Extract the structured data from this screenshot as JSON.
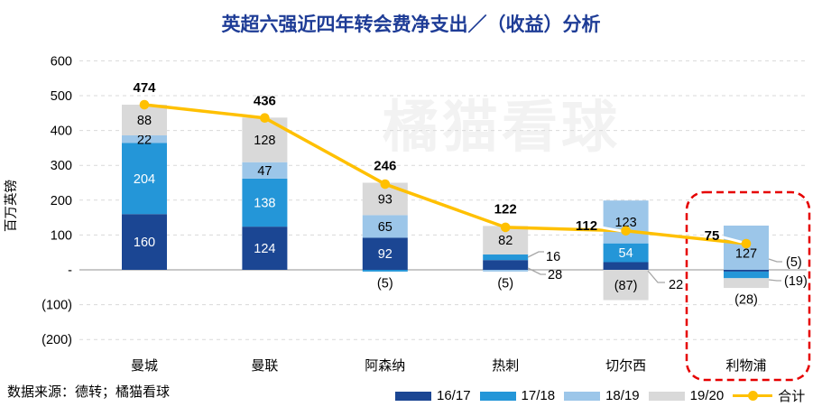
{
  "title": "英超六强近四年转会费净支出／（收益）分析",
  "watermark": "橘猫看球",
  "source_note": "数据来源：德转；橘猫看球",
  "colors": {
    "title": "#1E3C96",
    "series_16_17": "#1B4693",
    "series_17_18": "#2496D8",
    "series_18_19": "#9CC6E9",
    "series_19_20": "#D9D9D9",
    "total_line": "#FFC000",
    "highlight_box": "#E60000",
    "gridline": "#D9D9D9",
    "zero_line": "#A6A6A6"
  },
  "chart_data": {
    "type": "bar",
    "stacked": true,
    "title": "英超六强近四年转会费净支出／（收益）分析",
    "ylabel": "百万英镑",
    "ylim": [
      -200,
      600
    ],
    "grid": "horizontal-dashed",
    "legend_position": "bottom-right",
    "negative_format": "parentheses",
    "categories": [
      "曼城",
      "曼联",
      "阿森纳",
      "热刺",
      "切尔西",
      "利物浦"
    ],
    "series": [
      {
        "name": "16/17",
        "color": "#1B4693",
        "values": [
          160,
          124,
          92,
          28,
          22,
          -5
        ]
      },
      {
        "name": "17/18",
        "color": "#2496D8",
        "values": [
          204,
          138,
          -5,
          16,
          54,
          -19
        ]
      },
      {
        "name": "18/19",
        "color": "#9CC6E9",
        "values": [
          22,
          47,
          65,
          -5,
          123,
          127
        ]
      },
      {
        "name": "19/20",
        "color": "#D9D9D9",
        "values": [
          88,
          128,
          93,
          82,
          -87,
          -28
        ]
      }
    ],
    "line_series": {
      "name": "合计",
      "color": "#FFC000",
      "values": [
        474,
        436,
        246,
        122,
        112,
        75
      ]
    },
    "total_labels": [
      "474",
      "436",
      "246",
      "122",
      "112",
      "75"
    ],
    "yticks": [
      {
        "value": 600,
        "label": "600"
      },
      {
        "value": 500,
        "label": "500"
      },
      {
        "value": 400,
        "label": "400"
      },
      {
        "value": 300,
        "label": "300"
      },
      {
        "value": 200,
        "label": "200"
      },
      {
        "value": 100,
        "label": "100"
      },
      {
        "value": 0,
        "label": "-"
      },
      {
        "value": -100,
        "label": "(100)"
      },
      {
        "value": -200,
        "label": "(200)"
      }
    ],
    "label_placements": [
      [
        "in",
        "in",
        "in",
        "right",
        "right",
        "right"
      ],
      [
        "in",
        "in",
        "below",
        "right",
        "in",
        "right"
      ],
      [
        "in",
        "in",
        "in",
        "below",
        "in",
        "in"
      ],
      [
        "in",
        "in",
        "in",
        "in",
        "in",
        "below"
      ]
    ],
    "highlight_box": {
      "category": "利物浦",
      "style": "dashed-rounded",
      "color": "#E60000"
    }
  },
  "legend": {
    "total_label": "合计"
  }
}
